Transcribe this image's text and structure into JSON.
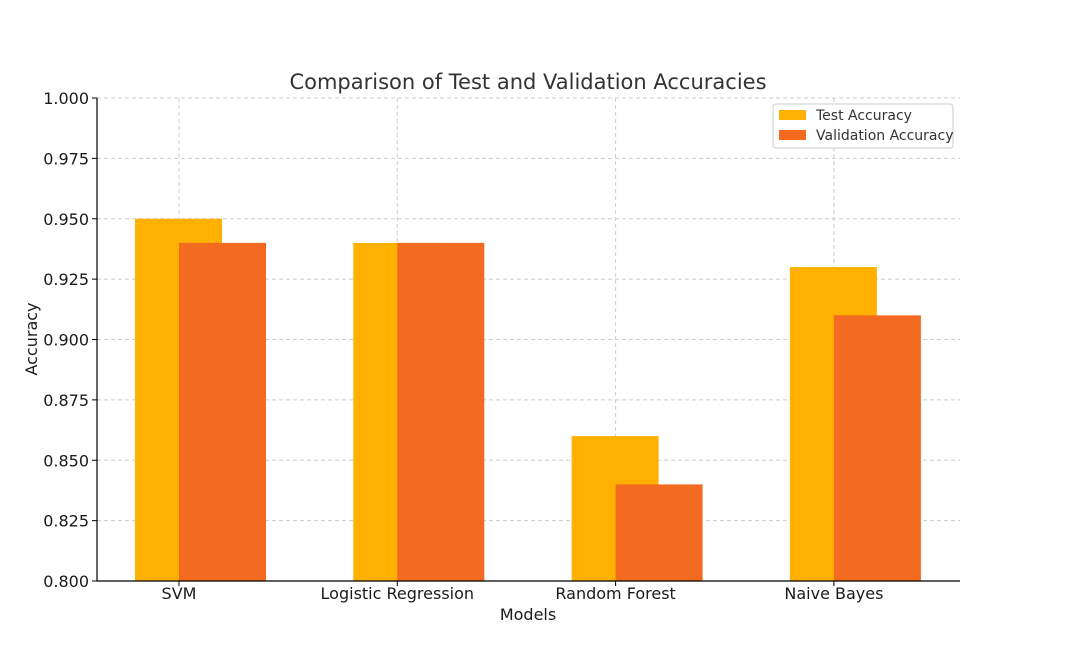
{
  "chart_data": {
    "type": "bar",
    "title": "Comparison of Test and Validation Accuracies",
    "xlabel": "Models",
    "ylabel": "Accuracy",
    "categories": [
      "SVM",
      "Logistic Regression",
      "Random Forest",
      "Naive Bayes"
    ],
    "series": [
      {
        "name": "Test Accuracy",
        "values": [
          0.95,
          0.94,
          0.86,
          0.93
        ],
        "color": "#ffb000"
      },
      {
        "name": "Validation Accuracy",
        "values": [
          0.94,
          0.94,
          0.84,
          0.91
        ],
        "color": "#f26b21"
      }
    ],
    "ylim": [
      0.8,
      1.0
    ],
    "yticks": [
      "0.800",
      "0.825",
      "0.850",
      "0.875",
      "0.900",
      "0.925",
      "0.950",
      "0.975",
      "1.000"
    ],
    "grid": true,
    "legend_position": "top-right"
  }
}
